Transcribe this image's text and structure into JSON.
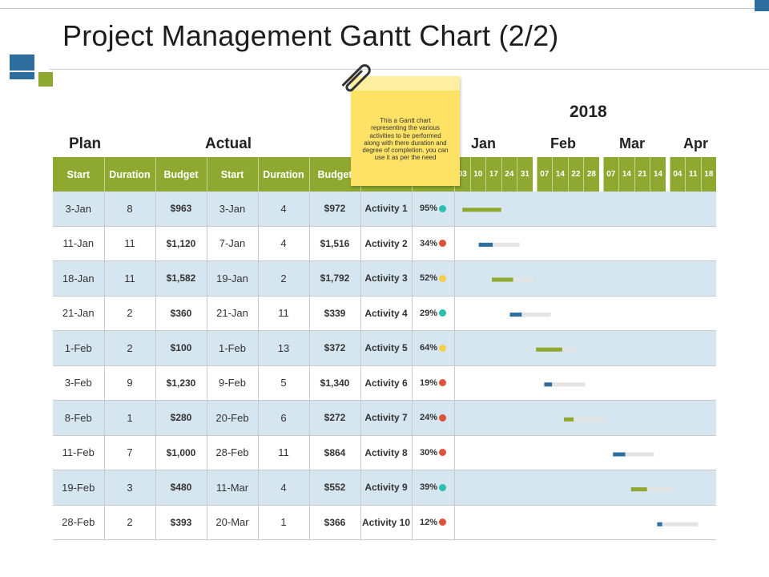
{
  "title": "Project Management Gantt Chart (2/2)",
  "chart_data": {
    "type": "table",
    "title": "Project Management Gantt Chart (2/2)",
    "year": "2018",
    "group_labels": {
      "plan": "Plan",
      "actual": "Actual"
    },
    "columns": [
      "Start",
      "Duration",
      "Budget",
      "Start",
      "Duration",
      "Budget"
    ],
    "months": [
      "Jan",
      "Feb",
      "Mar",
      "Apr"
    ],
    "weeks": [
      {
        "month": "Jan",
        "days": [
          "03",
          "10",
          "17",
          "24",
          "31"
        ]
      },
      {
        "month": "Feb",
        "days": [
          "07",
          "14",
          "22",
          "28"
        ]
      },
      {
        "month": "Mar",
        "days": [
          "07",
          "14",
          "21",
          "14"
        ]
      },
      {
        "month": "Apr",
        "days": [
          "04",
          "11",
          "18"
        ]
      }
    ],
    "note": "This a Gantt chart representing the various activities to be performed along with there duration and degree of completion. you can use it as per the need",
    "rows": [
      {
        "plan_start": "3-Jan",
        "plan_duration": "8",
        "plan_budget": "$963",
        "actual_start": "3-Jan",
        "actual_duration": "4",
        "actual_budget": "$972",
        "activity": "Activity 1",
        "pct_label": "95%",
        "completion": 0.95,
        "start_week": 0.5,
        "span_weeks": 2.5,
        "status_color": "#2bbfae",
        "bar_color": "#8fa830"
      },
      {
        "plan_start": "11-Jan",
        "plan_duration": "11",
        "plan_budget": "$1,120",
        "actual_start": "7-Jan",
        "actual_duration": "4",
        "actual_budget": "$1,516",
        "activity": "Activity 2",
        "pct_label": "34%",
        "completion": 0.34,
        "start_week": 1.5,
        "span_weeks": 2.5,
        "status_color": "#e0513a",
        "bar_color": "#2e6e9e"
      },
      {
        "plan_start": "18-Jan",
        "plan_duration": "11",
        "plan_budget": "$1,582",
        "actual_start": "19-Jan",
        "actual_duration": "2",
        "actual_budget": "$1,792",
        "activity": "Activity 3",
        "pct_label": "52%",
        "completion": 0.52,
        "start_week": 2.3,
        "span_weeks": 2.5,
        "status_color": "#f5cf4a",
        "bar_color": "#8fa830"
      },
      {
        "plan_start": "21-Jan",
        "plan_duration": "2",
        "plan_budget": "$360",
        "actual_start": "21-Jan",
        "actual_duration": "11",
        "actual_budget": "$339",
        "activity": "Activity 4",
        "pct_label": "29%",
        "completion": 0.29,
        "start_week": 3.4,
        "span_weeks": 2.5,
        "status_color": "#2bbfae",
        "bar_color": "#2e6e9e"
      },
      {
        "plan_start": "1-Feb",
        "plan_duration": "2",
        "plan_budget": "$100",
        "actual_start": "1-Feb",
        "actual_duration": "13",
        "actual_budget": "$372",
        "activity": "Activity 5",
        "pct_label": "64%",
        "completion": 0.64,
        "start_week": 5.0,
        "span_weeks": 2.5,
        "status_color": "#f5cf4a",
        "bar_color": "#8fa830"
      },
      {
        "plan_start": "3-Feb",
        "plan_duration": "9",
        "plan_budget": "$1,230",
        "actual_start": "9-Feb",
        "actual_duration": "5",
        "actual_budget": "$1,340",
        "activity": "Activity 6",
        "pct_label": "19%",
        "completion": 0.19,
        "start_week": 5.5,
        "span_weeks": 2.5,
        "status_color": "#e0513a",
        "bar_color": "#2e6e9e"
      },
      {
        "plan_start": "8-Feb",
        "plan_duration": "1",
        "plan_budget": "$280",
        "actual_start": "20-Feb",
        "actual_duration": "6",
        "actual_budget": "$272",
        "activity": "Activity 7",
        "pct_label": "24%",
        "completion": 0.24,
        "start_week": 6.7,
        "span_weeks": 2.5,
        "status_color": "#e0513a",
        "bar_color": "#8fa830"
      },
      {
        "plan_start": "11-Feb",
        "plan_duration": "7",
        "plan_budget": "$1,000",
        "actual_start": "28-Feb",
        "actual_duration": "11",
        "actual_budget": "$864",
        "activity": "Activity 8",
        "pct_label": "30%",
        "completion": 0.3,
        "start_week": 9.7,
        "span_weeks": 2.5,
        "status_color": "#e0513a",
        "bar_color": "#2e6e9e"
      },
      {
        "plan_start": "19-Feb",
        "plan_duration": "3",
        "plan_budget": "$480",
        "actual_start": "11-Mar",
        "actual_duration": "4",
        "actual_budget": "$552",
        "activity": "Activity 9",
        "pct_label": "39%",
        "completion": 0.39,
        "start_week": 10.8,
        "span_weeks": 2.5,
        "status_color": "#2bbfae",
        "bar_color": "#8fa830"
      },
      {
        "plan_start": "28-Feb",
        "plan_duration": "2",
        "plan_budget": "$393",
        "actual_start": "20-Mar",
        "actual_duration": "1",
        "actual_budget": "$366",
        "activity": "Activity 10",
        "pct_label": "12%",
        "completion": 0.12,
        "start_week": 12.4,
        "span_weeks": 2.5,
        "status_color": "#e0513a",
        "bar_color": "#2e6e9e"
      }
    ]
  }
}
